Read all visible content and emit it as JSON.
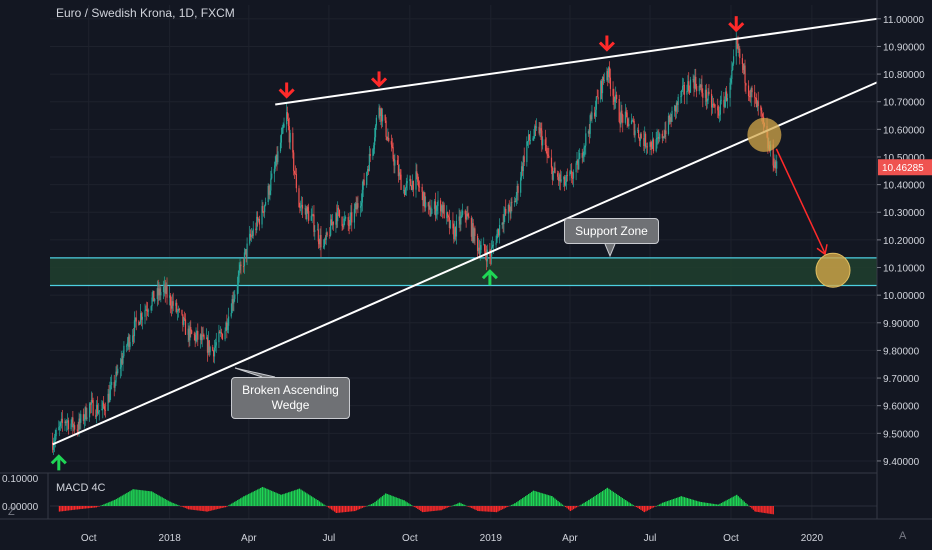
{
  "title": "Euro / Swedish Krona, 1D, FXCM",
  "last_price": "10.46285",
  "colors": {
    "background": "#131722",
    "grid": "#1e222d",
    "up": "#26a69a",
    "down": "#ef5350",
    "support_zone": "#1f3d2e",
    "support_line": "#4dd0e1",
    "trendline": "#ffffff",
    "arrow_down": "#ff2a2a",
    "arrow_up": "#1fd655",
    "circle": "#d4a849",
    "price_label": "#ef5350"
  },
  "annotations": {
    "support_zone": "Support Zone",
    "wedge": "Broken Ascending Wedge"
  },
  "macd": {
    "label": "MACD 4C",
    "ticks": [
      "0.10000",
      "0.00000"
    ],
    "histogram": [
      {
        "date": "2017-08-28",
        "v": -0.02
      },
      {
        "date": "2017-09-18",
        "v": -0.012
      },
      {
        "date": "2017-10-09",
        "v": -0.005
      },
      {
        "date": "2017-10-30",
        "v": 0.022
      },
      {
        "date": "2017-11-20",
        "v": 0.06
      },
      {
        "date": "2017-12-11",
        "v": 0.052
      },
      {
        "date": "2018-01-01",
        "v": 0.015
      },
      {
        "date": "2018-01-22",
        "v": -0.012
      },
      {
        "date": "2018-02-12",
        "v": -0.02
      },
      {
        "date": "2018-03-05",
        "v": -0.004
      },
      {
        "date": "2018-03-26",
        "v": 0.035
      },
      {
        "date": "2018-04-16",
        "v": 0.068
      },
      {
        "date": "2018-05-07",
        "v": 0.04
      },
      {
        "date": "2018-05-28",
        "v": 0.062
      },
      {
        "date": "2018-06-18",
        "v": 0.02
      },
      {
        "date": "2018-07-09",
        "v": -0.025
      },
      {
        "date": "2018-07-30",
        "v": -0.018
      },
      {
        "date": "2018-08-20",
        "v": 0.01
      },
      {
        "date": "2018-09-03",
        "v": 0.045
      },
      {
        "date": "2018-09-24",
        "v": 0.02
      },
      {
        "date": "2018-10-15",
        "v": -0.022
      },
      {
        "date": "2018-11-05",
        "v": -0.015
      },
      {
        "date": "2018-11-26",
        "v": 0.012
      },
      {
        "date": "2018-12-17",
        "v": -0.018
      },
      {
        "date": "2019-01-07",
        "v": -0.022
      },
      {
        "date": "2019-01-28",
        "v": 0.01
      },
      {
        "date": "2019-02-18",
        "v": 0.055
      },
      {
        "date": "2019-03-11",
        "v": 0.035
      },
      {
        "date": "2019-04-01",
        "v": -0.018
      },
      {
        "date": "2019-04-22",
        "v": 0.022
      },
      {
        "date": "2019-05-13",
        "v": 0.065
      },
      {
        "date": "2019-06-03",
        "v": 0.02
      },
      {
        "date": "2019-06-24",
        "v": -0.022
      },
      {
        "date": "2019-07-15",
        "v": 0.012
      },
      {
        "date": "2019-08-05",
        "v": 0.035
      },
      {
        "date": "2019-08-26",
        "v": 0.015
      },
      {
        "date": "2019-09-16",
        "v": 0.005
      },
      {
        "date": "2019-10-07",
        "v": 0.04
      },
      {
        "date": "2019-10-28",
        "v": -0.02
      },
      {
        "date": "2019-11-18",
        "v": -0.03
      }
    ]
  },
  "chart_data": {
    "type": "candlestick",
    "title": "Euro / Swedish Krona, 1D, FXCM",
    "y_range": [
      9.36,
      11.05
    ],
    "y_ticks": [
      "9.40000",
      "9.50000",
      "9.60000",
      "9.70000",
      "9.80000",
      "9.90000",
      "10.00000",
      "10.10000",
      "10.20000",
      "10.30000",
      "10.40000",
      "10.50000",
      "10.60000",
      "10.70000",
      "10.80000",
      "10.90000",
      "11.00000"
    ],
    "x_ticks": [
      {
        "label": "Oct",
        "date": "2017-10-01"
      },
      {
        "label": "2018",
        "date": "2018-01-01"
      },
      {
        "label": "Apr",
        "date": "2018-04-01"
      },
      {
        "label": "Jul",
        "date": "2018-07-01"
      },
      {
        "label": "Oct",
        "date": "2018-10-01"
      },
      {
        "label": "2019",
        "date": "2019-01-01"
      },
      {
        "label": "Apr",
        "date": "2019-04-01"
      },
      {
        "label": "Jul",
        "date": "2019-07-01"
      },
      {
        "label": "Oct",
        "date": "2019-10-01"
      },
      {
        "label": "2020",
        "date": "2020-01-01"
      }
    ],
    "x_range": [
      "2017-08-18",
      "2020-03-15"
    ],
    "price_path": [
      {
        "date": "2017-08-21",
        "close": 9.47
      },
      {
        "date": "2017-09-04",
        "close": 9.55
      },
      {
        "date": "2017-09-18",
        "close": 9.52
      },
      {
        "date": "2017-10-02",
        "close": 9.6
      },
      {
        "date": "2017-10-16",
        "close": 9.58
      },
      {
        "date": "2017-10-30",
        "close": 9.68
      },
      {
        "date": "2017-11-13",
        "close": 9.82
      },
      {
        "date": "2017-11-27",
        "close": 9.92
      },
      {
        "date": "2017-12-11",
        "close": 9.98
      },
      {
        "date": "2017-12-25",
        "close": 10.02
      },
      {
        "date": "2018-01-08",
        "close": 9.95
      },
      {
        "date": "2018-01-22",
        "close": 9.86
      },
      {
        "date": "2018-02-05",
        "close": 9.84
      },
      {
        "date": "2018-02-19",
        "close": 9.8
      },
      {
        "date": "2018-03-05",
        "close": 9.88
      },
      {
        "date": "2018-03-19",
        "close": 10.05
      },
      {
        "date": "2018-04-02",
        "close": 10.2
      },
      {
        "date": "2018-04-16",
        "close": 10.3
      },
      {
        "date": "2018-04-30",
        "close": 10.45
      },
      {
        "date": "2018-05-14",
        "close": 10.65
      },
      {
        "date": "2018-05-28",
        "close": 10.33
      },
      {
        "date": "2018-06-11",
        "close": 10.28
      },
      {
        "date": "2018-06-25",
        "close": 10.17
      },
      {
        "date": "2018-07-09",
        "close": 10.3
      },
      {
        "date": "2018-07-23",
        "close": 10.25
      },
      {
        "date": "2018-08-06",
        "close": 10.35
      },
      {
        "date": "2018-08-20",
        "close": 10.55
      },
      {
        "date": "2018-08-27",
        "close": 10.69
      },
      {
        "date": "2018-09-10",
        "close": 10.52
      },
      {
        "date": "2018-09-24",
        "close": 10.38
      },
      {
        "date": "2018-10-08",
        "close": 10.42
      },
      {
        "date": "2018-10-22",
        "close": 10.3
      },
      {
        "date": "2018-11-05",
        "close": 10.33
      },
      {
        "date": "2018-11-19",
        "close": 10.22
      },
      {
        "date": "2018-12-03",
        "close": 10.3
      },
      {
        "date": "2018-12-17",
        "close": 10.18
      },
      {
        "date": "2018-12-31",
        "close": 10.14
      },
      {
        "date": "2019-01-14",
        "close": 10.28
      },
      {
        "date": "2019-01-28",
        "close": 10.33
      },
      {
        "date": "2019-02-11",
        "close": 10.55
      },
      {
        "date": "2019-02-25",
        "close": 10.6
      },
      {
        "date": "2019-03-11",
        "close": 10.45
      },
      {
        "date": "2019-03-25",
        "close": 10.4
      },
      {
        "date": "2019-04-08",
        "close": 10.45
      },
      {
        "date": "2019-04-22",
        "close": 10.6
      },
      {
        "date": "2019-05-06",
        "close": 10.75
      },
      {
        "date": "2019-05-13",
        "close": 10.82
      },
      {
        "date": "2019-05-27",
        "close": 10.65
      },
      {
        "date": "2019-06-10",
        "close": 10.62
      },
      {
        "date": "2019-06-24",
        "close": 10.56
      },
      {
        "date": "2019-07-08",
        "close": 10.54
      },
      {
        "date": "2019-07-22",
        "close": 10.62
      },
      {
        "date": "2019-08-05",
        "close": 10.72
      },
      {
        "date": "2019-08-19",
        "close": 10.78
      },
      {
        "date": "2019-09-02",
        "close": 10.72
      },
      {
        "date": "2019-09-16",
        "close": 10.66
      },
      {
        "date": "2019-09-30",
        "close": 10.75
      },
      {
        "date": "2019-10-07",
        "close": 10.9
      },
      {
        "date": "2019-10-21",
        "close": 10.75
      },
      {
        "date": "2019-11-04",
        "close": 10.65
      },
      {
        "date": "2019-11-11",
        "close": 10.55
      },
      {
        "date": "2019-11-22",
        "close": 10.46
      }
    ],
    "support_zone": {
      "low": 10.035,
      "high": 10.135,
      "label": "Support Zone"
    },
    "trendlines": [
      {
        "name": "lower-wedge",
        "from": {
          "date": "2017-08-21",
          "price": 9.46
        },
        "to": {
          "date": "2020-03-15",
          "price": 10.77
        }
      },
      {
        "name": "upper-wedge",
        "from": {
          "date": "2018-05-01",
          "price": 10.69
        },
        "to": {
          "date": "2020-03-15",
          "price": 11.0
        }
      }
    ],
    "down_arrows": [
      {
        "date": "2018-05-14",
        "price": 10.69
      },
      {
        "date": "2018-08-27",
        "price": 10.73
      },
      {
        "date": "2019-05-13",
        "price": 10.86
      },
      {
        "date": "2019-10-07",
        "price": 10.93
      }
    ],
    "up_arrows": [
      {
        "date": "2017-08-28",
        "price": 9.46
      },
      {
        "date": "2018-12-31",
        "price": 10.13
      }
    ],
    "breakout_circle": {
      "date": "2019-11-08",
      "price": 10.58
    },
    "target_circle": {
      "date": "2020-01-25",
      "price": 10.09
    },
    "last_price": 10.46285
  }
}
